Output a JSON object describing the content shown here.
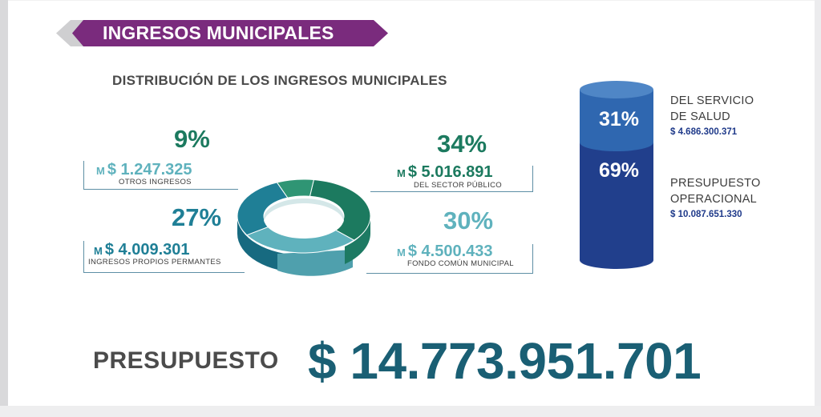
{
  "header": {
    "title": "INGRESOS MUNICIPALES"
  },
  "distribution_title": "DISTRIBUCIÓN DE LOS INGRESOS MUNICIPALES",
  "colors": {
    "purple": "#7a2b7d",
    "green_dark": "#1c7a5f",
    "green_mid": "#2f9574",
    "teal": "#1f7f96",
    "teal_light": "#5fb2bd",
    "navy": "#213f8c",
    "blue_top": "#2f67b0"
  },
  "chart_data": [
    {
      "type": "pie",
      "title": "DISTRIBUCIÓN DE LOS INGRESOS MUNICIPALES",
      "slices": [
        {
          "label": "OTROS INGRESOS",
          "percent": "9%",
          "value": 9,
          "amount": "$ 1.247.325",
          "unit": "M"
        },
        {
          "label": "DEL SECTOR PÚBLICO",
          "percent": "34%",
          "value": 34,
          "amount": "$ 5.016.891",
          "unit": "M"
        },
        {
          "label": "FONDO COMÚN MUNICIPAL",
          "percent": "30%",
          "value": 30,
          "amount": "$ 4.500.433",
          "unit": "M"
        },
        {
          "label": "INGRESOS PROPIOS PERMANTES",
          "percent": "27%",
          "value": 27,
          "amount": "$ 4.009.301",
          "unit": "M"
        }
      ]
    },
    {
      "type": "bar",
      "stacked": true,
      "segments": [
        {
          "label_line1": "DEL SERVICIO",
          "label_line2": "DE SALUD",
          "percent": "31%",
          "value": 31,
          "amount": "$ 4.686.300.371"
        },
        {
          "label_line1": "PRESUPUESTO",
          "label_line2": "OPERACIONAL",
          "percent": "69%",
          "value": 69,
          "amount": "$ 10.087.651.330"
        }
      ]
    }
  ],
  "presupuesto": {
    "label": "PRESUPUESTO",
    "value": "$ 14.773.951.701"
  }
}
